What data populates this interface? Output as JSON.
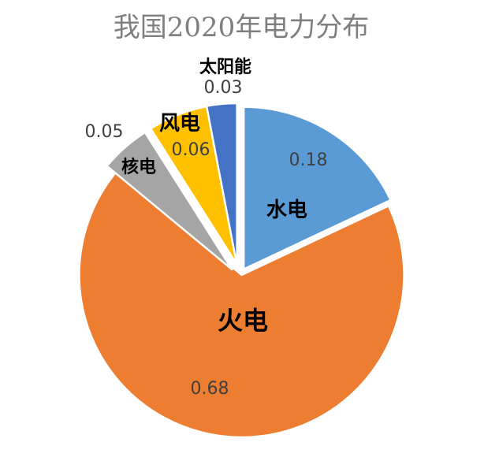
{
  "chart_data": {
    "type": "pie",
    "title": "我国2020年电力分布",
    "categories": [
      "水电",
      "火电",
      "核电",
      "风电",
      "太阳能"
    ],
    "values": [
      0.18,
      0.68,
      0.05,
      0.06,
      0.03
    ],
    "value_labels": [
      "0.18",
      "0.68",
      "0.05",
      "0.06",
      "0.03"
    ],
    "colors": [
      "#5b9bd5",
      "#ed7d31",
      "#a5a5a5",
      "#ffc000",
      "#4472c4"
    ],
    "start": "12 o'clock",
    "direction": "clockwise",
    "legend": "none"
  }
}
